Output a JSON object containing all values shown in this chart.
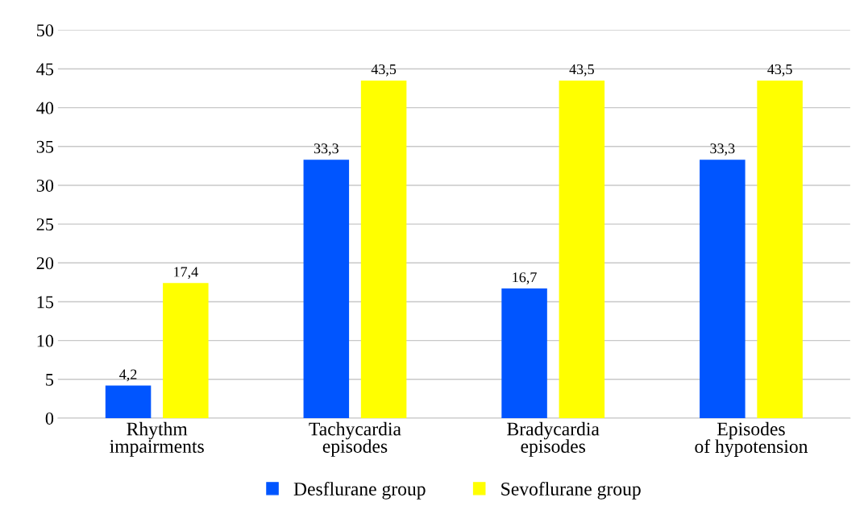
{
  "chart_data": {
    "type": "bar",
    "categories": [
      "Rhythm\nimpairments",
      "Tachycardia\nepisodes",
      "Bradycardia\nepisodes",
      "Episodes\nof hypotension"
    ],
    "series": [
      {
        "name": "Desflurane group",
        "color": "#0055ff",
        "values": [
          4.2,
          33.3,
          16.7,
          33.3
        ],
        "value_labels": [
          "4,2",
          "33,3",
          "16,7",
          "33,3"
        ]
      },
      {
        "name": "Sevoflurane group",
        "color": "#ffff00",
        "values": [
          17.4,
          43.5,
          43.5,
          43.5
        ],
        "value_labels": [
          "17,4",
          "43,5",
          "43,5",
          "43,5"
        ]
      }
    ],
    "ylim": [
      0,
      50
    ],
    "yticks": [
      0,
      5,
      10,
      15,
      20,
      25,
      30,
      35,
      40,
      45,
      50
    ],
    "grid": "y",
    "legend": "bottom"
  }
}
